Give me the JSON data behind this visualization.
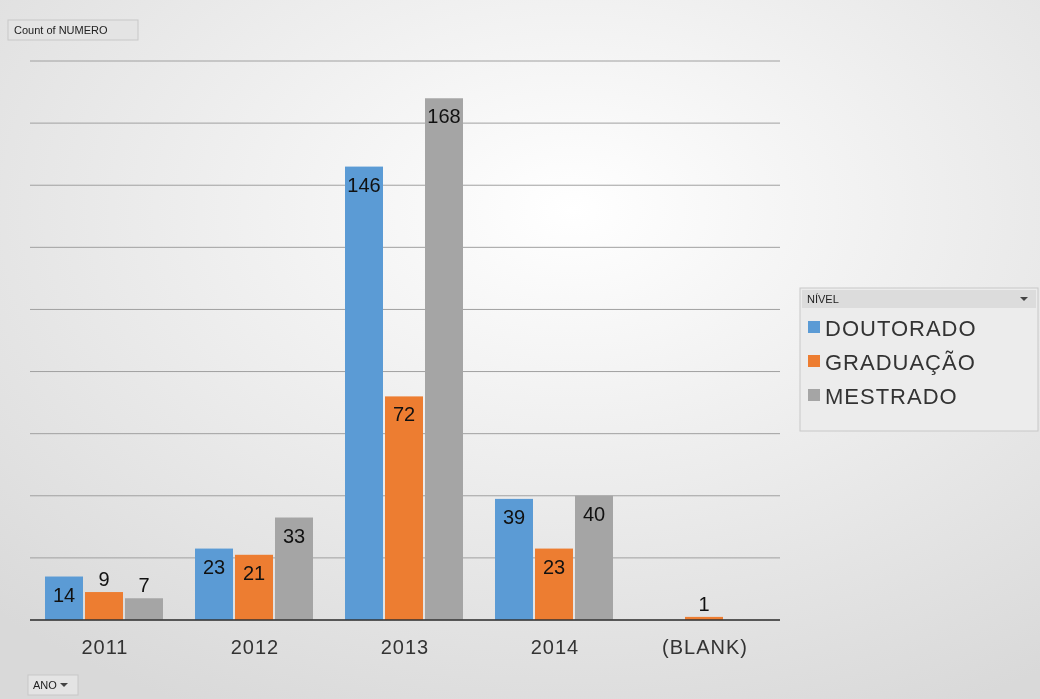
{
  "chart_data": {
    "type": "bar",
    "ylabel": "Count of NUMERO",
    "xlabel": "ANO",
    "legend_title": "NÍVEL",
    "categories": [
      "2011",
      "2012",
      "2013",
      "2014",
      "(BLANK)"
    ],
    "series": [
      {
        "name": "DOUTORADO",
        "color": "#5b9bd5",
        "values": [
          14,
          23,
          146,
          39,
          null
        ]
      },
      {
        "name": "GRADUAÇÃO",
        "color": "#ed7d31",
        "values": [
          9,
          21,
          72,
          23,
          1
        ]
      },
      {
        "name": "MESTRADO",
        "color": "#a5a5a5",
        "values": [
          7,
          33,
          168,
          40,
          null
        ]
      }
    ],
    "ylim": [
      0,
      180
    ],
    "yticks": [
      {
        "value": 0,
        "label": null
      },
      {
        "value": 20,
        "label": null
      },
      {
        "value": 40,
        "label": null
      },
      {
        "value": 60,
        "label": null
      },
      {
        "value": 80,
        "label": null
      },
      {
        "value": 100,
        "label": null
      },
      {
        "value": 120,
        "label": null
      },
      {
        "value": 140,
        "label": null
      },
      {
        "value": 160,
        "label": null
      },
      {
        "value": 180,
        "label": null
      }
    ],
    "tick_labels": "x",
    "grid": "y",
    "legend": "right",
    "data_labels": true
  }
}
